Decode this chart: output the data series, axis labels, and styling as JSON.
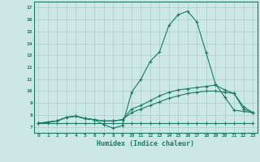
{
  "title": "",
  "xlabel": "Humidex (Indice chaleur)",
  "ylabel": "",
  "bg_color": "#cce8e4",
  "grid_color": "#aaccc8",
  "line_color": "#1a7a6a",
  "xlim": [
    -0.5,
    23.5
  ],
  "ylim": [
    6.5,
    17.5
  ],
  "xticks": [
    0,
    1,
    2,
    3,
    4,
    5,
    6,
    7,
    8,
    9,
    10,
    11,
    12,
    13,
    14,
    15,
    16,
    17,
    18,
    19,
    20,
    21,
    22,
    23
  ],
  "yticks": [
    7,
    8,
    9,
    10,
    11,
    12,
    13,
    14,
    15,
    16,
    17
  ],
  "series": [
    [
      7.3,
      7.4,
      7.5,
      7.8,
      7.9,
      7.7,
      7.6,
      7.2,
      6.9,
      7.1,
      9.9,
      11.0,
      12.5,
      13.3,
      15.5,
      16.4,
      16.7,
      15.8,
      13.2,
      10.6,
      9.5,
      8.4,
      8.3,
      8.2
    ],
    [
      7.3,
      7.4,
      7.5,
      7.8,
      7.9,
      7.7,
      7.6,
      7.5,
      7.5,
      7.6,
      8.5,
      8.8,
      9.2,
      9.6,
      9.9,
      10.1,
      10.2,
      10.3,
      10.4,
      10.5,
      10.1,
      9.8,
      8.7,
      8.2
    ],
    [
      7.3,
      7.4,
      7.5,
      7.8,
      7.9,
      7.7,
      7.6,
      7.5,
      7.5,
      7.6,
      8.2,
      8.5,
      8.8,
      9.1,
      9.4,
      9.6,
      9.8,
      9.9,
      10.0,
      10.0,
      9.9,
      9.8,
      8.5,
      8.2
    ],
    [
      7.3,
      7.3,
      7.3,
      7.3,
      7.3,
      7.3,
      7.3,
      7.3,
      7.3,
      7.3,
      7.3,
      7.3,
      7.3,
      7.3,
      7.3,
      7.3,
      7.3,
      7.3,
      7.3,
      7.3,
      7.3,
      7.3,
      7.3,
      7.3
    ]
  ]
}
